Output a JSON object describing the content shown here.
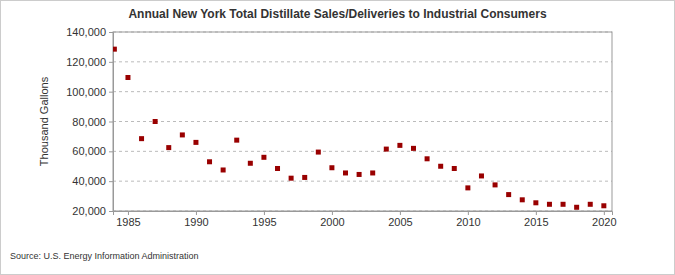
{
  "chart_data": {
    "type": "scatter",
    "title": "Annual New York Total Distillate Sales/Deliveries to Industrial Consumers",
    "y_label": "Thousand Gallons",
    "annotations": [
      "Source: U.S. Energy Information Administration"
    ],
    "x": [
      1984,
      1985,
      1986,
      1987,
      1988,
      1989,
      1990,
      1991,
      1992,
      1993,
      1994,
      1995,
      1996,
      1997,
      1998,
      1999,
      2000,
      2001,
      2002,
      2003,
      2004,
      2005,
      2006,
      2007,
      2008,
      2009,
      2010,
      2011,
      2012,
      2013,
      2014,
      2015,
      2016,
      2017,
      2018,
      2019,
      2020
    ],
    "series": [
      {
        "name": "New York Total Distillate Sales/Deliveries to Industrial Consumers",
        "color": "#990000",
        "marker": "square",
        "values": [
          128500,
          109500,
          68500,
          80000,
          62500,
          71000,
          66000,
          53000,
          47500,
          67500,
          52000,
          56000,
          48500,
          42000,
          42500,
          59500,
          49000,
          45500,
          44500,
          45500,
          61500,
          64000,
          62000,
          55000,
          50000,
          48500,
          35500,
          43500,
          37500,
          31000,
          27500,
          25500,
          24500,
          24500,
          22500,
          24500,
          23500
        ]
      }
    ],
    "xlim": [
      1983.9,
      2020.6
    ],
    "xticks": [
      1985,
      1990,
      1995,
      2000,
      2005,
      2010,
      2015,
      2020
    ],
    "ylim": [
      20000,
      140000
    ],
    "yticks": [
      {
        "value": 20000,
        "label": "20,000"
      },
      {
        "value": 40000,
        "label": "40,000"
      },
      {
        "value": 60000,
        "label": "60,000"
      },
      {
        "value": 80000,
        "label": "80,000"
      },
      {
        "value": 100000,
        "label": "100,000"
      },
      {
        "value": 120000,
        "label": "120,000"
      },
      {
        "value": 140000,
        "label": "140,000"
      }
    ],
    "grid": true
  }
}
